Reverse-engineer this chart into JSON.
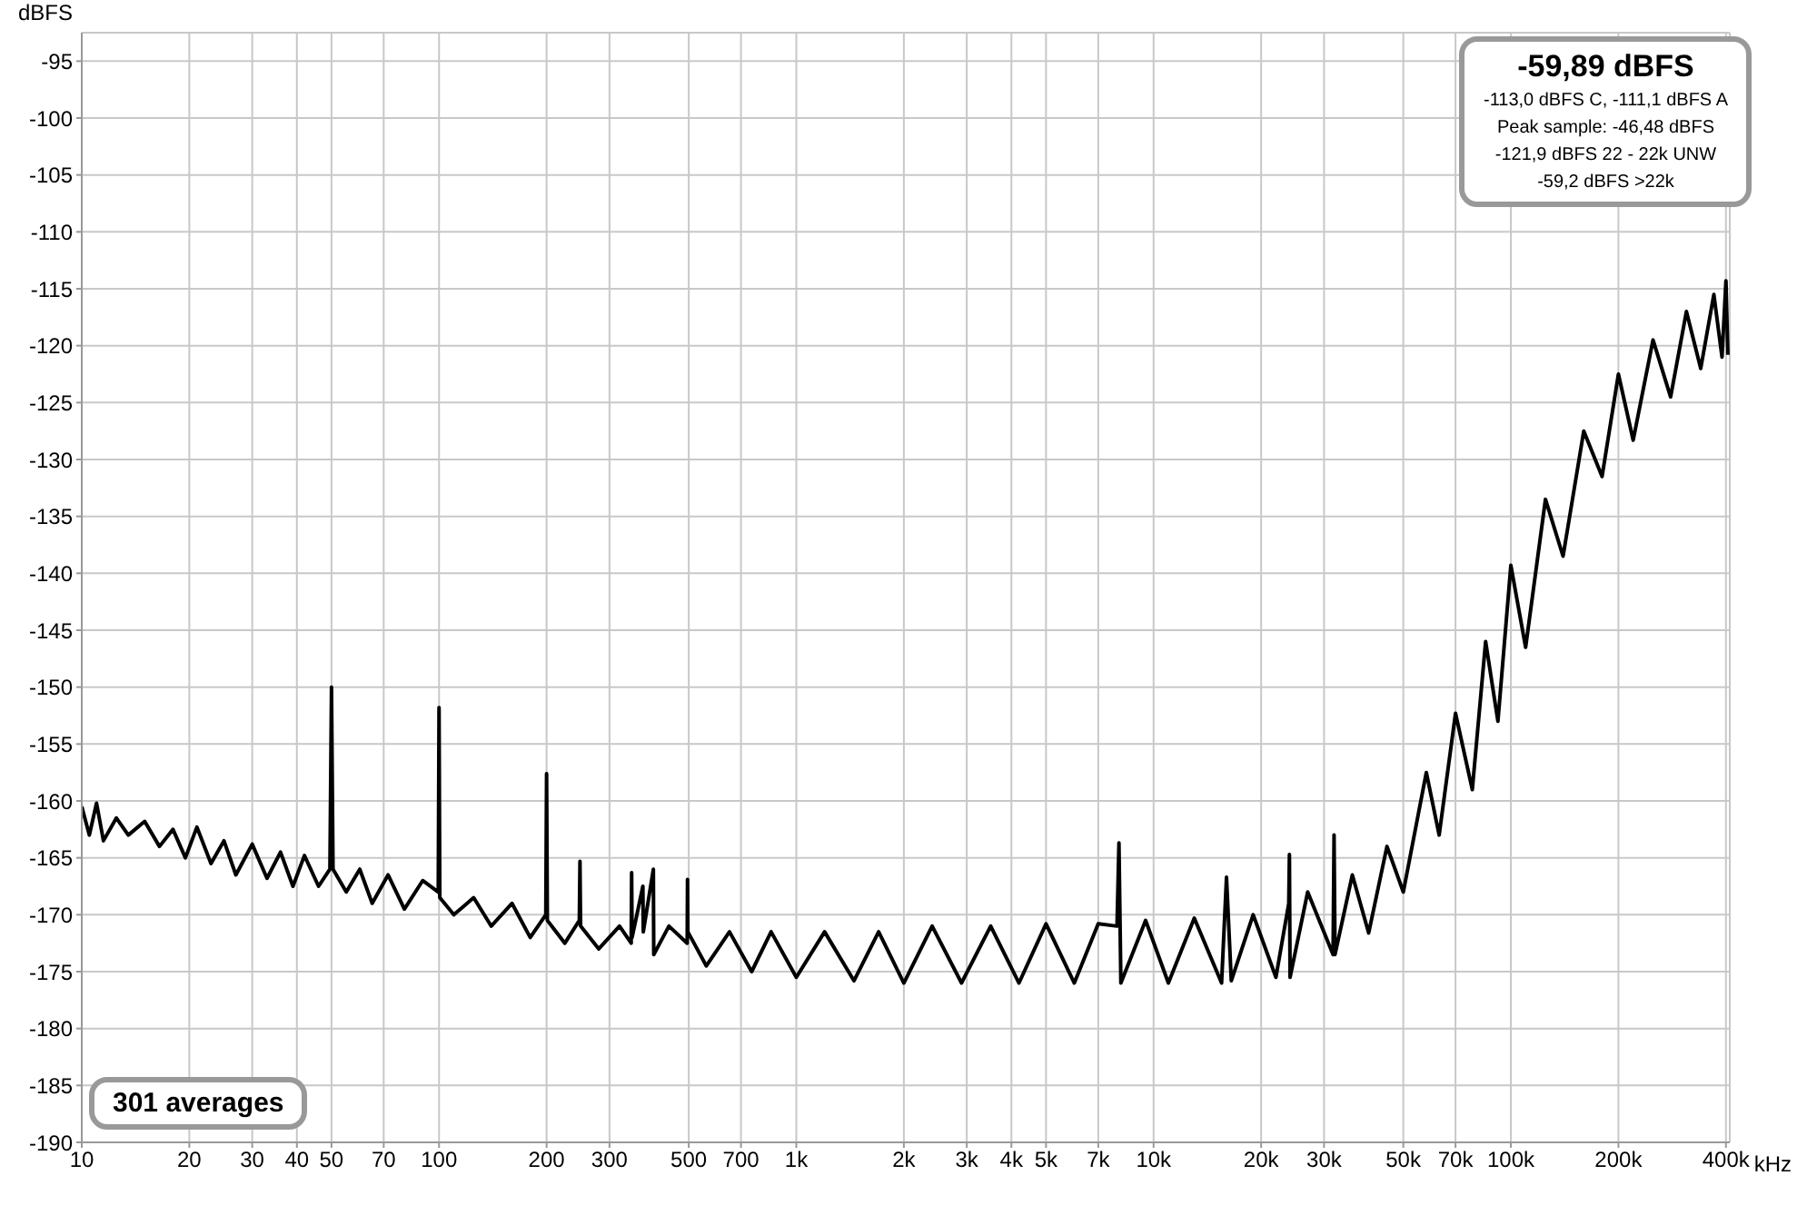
{
  "chart_data": {
    "type": "line",
    "ylabel": "dBFS",
    "annotations": [
      "-59,89 dBFS",
      "-113,0 dBFS C, -111,1 dBFS A",
      "Peak sample: -46,48 dBFS",
      "-121,9 dBFS 22 - 22k UNW",
      "-59,2 dBFS >22k",
      "301 averages"
    ],
    "log": "x",
    "grid": true,
    "xlabel": "kHz",
    "xlim": [
      10,
      410000
    ],
    "xticks": [
      10,
      20,
      30,
      40,
      50,
      70,
      100,
      200,
      300,
      500,
      700,
      {
        "value": 1000,
        "label": "1k"
      },
      {
        "value": 2000,
        "label": "2k"
      },
      {
        "value": 3000,
        "label": "3k"
      },
      {
        "value": 4000,
        "label": "4k"
      },
      {
        "value": 5000,
        "label": "5k"
      },
      {
        "value": 7000,
        "label": "7k"
      },
      {
        "value": 10000,
        "label": "10k"
      },
      {
        "value": 20000,
        "label": "20k"
      },
      {
        "value": 30000,
        "label": "30k"
      },
      {
        "value": 50000,
        "label": "50k"
      },
      {
        "value": 70000,
        "label": "70k"
      },
      {
        "value": 100000,
        "label": "100k"
      },
      {
        "value": 200000,
        "label": "200k"
      },
      {
        "value": 400000,
        "label": "400k"
      }
    ],
    "ylim": [
      -190,
      -92.5
    ],
    "yticks": [
      -190,
      -185,
      -180,
      -175,
      -170,
      -165,
      -160,
      -155,
      -150,
      -145,
      -140,
      -135,
      -130,
      -125,
      -120,
      -115,
      -110,
      -105,
      -100,
      -95
    ],
    "series": [
      {
        "color": "#000000",
        "line_style": "solid",
        "x": [
          10,
          10.5,
          11,
          11.5,
          12.5,
          13.5,
          15,
          16.5,
          18,
          19.5,
          21,
          23,
          25,
          27,
          30,
          33,
          36,
          39,
          42,
          46,
          49.5,
          50,
          50.5,
          55,
          60,
          65,
          72,
          80,
          90,
          99.5,
          100,
          100.5,
          110,
          125,
          140,
          160,
          180,
          199,
          200,
          201,
          225,
          247,
          248,
          249,
          280,
          320,
          345,
          346,
          347,
          372,
          373,
          398,
          399,
          440,
          495,
          496,
          497,
          560,
          650,
          750,
          850,
          1000,
          1200,
          1450,
          1700,
          2000,
          2400,
          2900,
          3500,
          4200,
          5000,
          6000,
          7000,
          7900,
          8000,
          8100,
          9500,
          11000,
          13000,
          15500,
          16000,
          16500,
          19000,
          22000,
          23900,
          24000,
          24100,
          27000,
          31800,
          32000,
          32200,
          36000,
          40000,
          45000,
          50000,
          58000,
          63000,
          70000,
          78000,
          85000,
          92000,
          100000,
          110000,
          125000,
          140000,
          160000,
          180000,
          200000,
          220000,
          250000,
          280000,
          310000,
          340000,
          370000,
          390000,
          400000,
          405000
        ],
        "values": [
          -160.5,
          -163,
          -160.2,
          -163.5,
          -161.5,
          -163,
          -161.8,
          -164,
          -162.5,
          -165,
          -162.3,
          -165.5,
          -163.5,
          -166.5,
          -163.8,
          -166.8,
          -164.5,
          -167.5,
          -164.8,
          -167.5,
          -166,
          -150,
          -166,
          -168,
          -166,
          -169,
          -166.5,
          -169.5,
          -167,
          -168,
          -151.8,
          -168.5,
          -170,
          -168.5,
          -171,
          -169,
          -172,
          -170,
          -157.6,
          -170.5,
          -172.5,
          -170.5,
          -165.3,
          -171,
          -173,
          -171,
          -172.5,
          -166.3,
          -172,
          -167.5,
          -171.5,
          -166,
          -173.5,
          -171,
          -172.5,
          -166.9,
          -171.5,
          -174.5,
          -171.5,
          -175,
          -171.5,
          -175.5,
          -171.5,
          -175.8,
          -171.5,
          -176,
          -171,
          -176,
          -171,
          -176,
          -170.8,
          -176,
          -170.8,
          -171,
          -163.7,
          -176,
          -170.5,
          -176,
          -170.3,
          -176,
          -166.7,
          -175.8,
          -170,
          -175.5,
          -169,
          -164.7,
          -175.5,
          -168,
          -173.5,
          -163,
          -173.5,
          -166.5,
          -171.6,
          -164,
          -168,
          -157.5,
          -163,
          -152.3,
          -159,
          -146,
          -153,
          -139.3,
          -146.5,
          -133.5,
          -138.5,
          -127.5,
          -131.5,
          -122.5,
          -128.3,
          -119.5,
          -124.5,
          -117,
          -122,
          -115.5,
          -121,
          -114.3,
          -120.8
        ]
      }
    ]
  }
}
